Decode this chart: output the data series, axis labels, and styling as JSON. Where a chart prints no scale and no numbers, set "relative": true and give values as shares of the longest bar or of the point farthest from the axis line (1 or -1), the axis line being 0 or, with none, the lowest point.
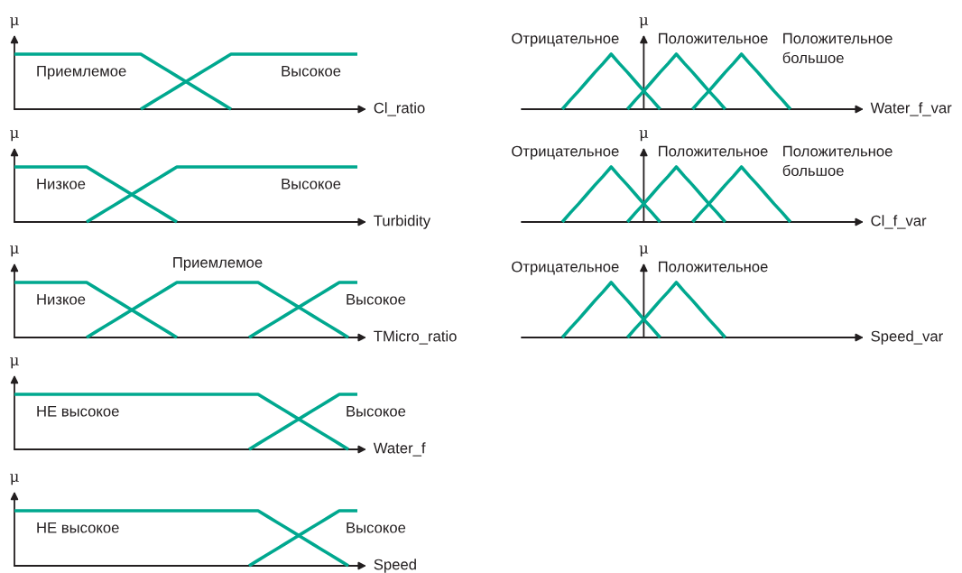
{
  "chart_data": [
    {
      "type": "line",
      "relative": true,
      "ylabel": "μ",
      "xlabel": "Cl_ratio",
      "marker": "none",
      "line_style": "solid",
      "categories": [
        null,
        null,
        null,
        null,
        null,
        null,
        null,
        null,
        null,
        null,
        null,
        null,
        null,
        null,
        null,
        null,
        null,
        null,
        null,
        null,
        null,
        null,
        null,
        null,
        null,
        null,
        null,
        null,
        null,
        null,
        null,
        null,
        null,
        null,
        null,
        null,
        null,
        null,
        null,
        null
      ],
      "series": [
        {
          "name": "Приемлемое",
          "color": "#00a88f",
          "values": [
            1,
            1,
            1,
            1,
            1,
            1,
            1,
            1,
            1,
            1,
            1,
            1,
            1,
            1,
            1,
            0.9,
            0.8,
            0.7,
            0.6,
            0.5,
            0.4,
            0.3,
            0.2,
            0.1,
            0,
            null,
            null,
            null,
            null,
            null,
            null,
            null,
            null,
            null,
            null,
            null,
            null,
            null,
            null,
            null
          ]
        },
        {
          "name": "Высокое",
          "color": "#00a88f",
          "values": [
            null,
            null,
            null,
            null,
            null,
            null,
            null,
            null,
            null,
            null,
            null,
            null,
            null,
            null,
            0,
            0.1,
            0.2,
            0.3,
            0.4,
            0.5,
            0.6,
            0.7,
            0.8,
            0.9,
            1,
            1,
            1,
            1,
            1,
            1,
            1,
            1,
            1,
            1,
            1,
            1,
            1,
            1,
            1,
            null
          ]
        }
      ]
    },
    {
      "type": "line",
      "relative": true,
      "ylabel": "μ",
      "xlabel": "Turbidity",
      "marker": "none",
      "line_style": "solid",
      "categories": [
        null,
        null,
        null,
        null,
        null,
        null,
        null,
        null,
        null,
        null,
        null,
        null,
        null,
        null,
        null,
        null,
        null,
        null,
        null,
        null,
        null,
        null,
        null,
        null,
        null,
        null,
        null,
        null,
        null,
        null,
        null,
        null,
        null,
        null,
        null,
        null,
        null,
        null,
        null,
        null
      ],
      "series": [
        {
          "name": "Низкое",
          "color": "#00a88f",
          "values": [
            1,
            1,
            1,
            1,
            1,
            1,
            1,
            1,
            1,
            0.9,
            0.8,
            0.7,
            0.6,
            0.5,
            0.4,
            0.3,
            0.2,
            0.1,
            0,
            null,
            null,
            null,
            null,
            null,
            null,
            null,
            null,
            null,
            null,
            null,
            null,
            null,
            null,
            null,
            null,
            null,
            null,
            null,
            null,
            null
          ]
        },
        {
          "name": "Высокое",
          "color": "#00a88f",
          "values": [
            null,
            null,
            null,
            null,
            null,
            null,
            null,
            null,
            0,
            0.1,
            0.2,
            0.3,
            0.4,
            0.5,
            0.6,
            0.7,
            0.8,
            0.9,
            1,
            1,
            1,
            1,
            1,
            1,
            1,
            1,
            1,
            1,
            1,
            1,
            1,
            1,
            1,
            1,
            1,
            1,
            1,
            1,
            1,
            null
          ]
        }
      ]
    },
    {
      "type": "line",
      "relative": true,
      "ylabel": "μ",
      "xlabel": "TMicro_ratio",
      "marker": "none",
      "line_style": "solid",
      "categories": [
        null,
        null,
        null,
        null,
        null,
        null,
        null,
        null,
        null,
        null,
        null,
        null,
        null,
        null,
        null,
        null,
        null,
        null,
        null,
        null,
        null,
        null,
        null,
        null,
        null,
        null,
        null,
        null,
        null,
        null,
        null,
        null,
        null,
        null,
        null,
        null,
        null,
        null,
        null,
        null
      ],
      "series": [
        {
          "name": "Низкое",
          "color": "#00a88f",
          "values": [
            1,
            1,
            1,
            1,
            1,
            1,
            1,
            1,
            1,
            0.9,
            0.8,
            0.7,
            0.6,
            0.5,
            0.4,
            0.3,
            0.2,
            0.1,
            0,
            null,
            null,
            null,
            null,
            null,
            null,
            null,
            null,
            null,
            null,
            null,
            null,
            null,
            null,
            null,
            null,
            null,
            null,
            null,
            null,
            null
          ]
        },
        {
          "name": "Приемлемое",
          "color": "#00a88f",
          "values": [
            null,
            null,
            null,
            null,
            null,
            null,
            null,
            null,
            0,
            0.1,
            0.2,
            0.3,
            0.4,
            0.5,
            0.6,
            0.7,
            0.8,
            0.9,
            1,
            1,
            1,
            1,
            1,
            1,
            1,
            1,
            1,
            1,
            0.9,
            0.8,
            0.7,
            0.6,
            0.5,
            0.4,
            0.3,
            0.2,
            0.1,
            0,
            null,
            null
          ]
        },
        {
          "name": "Высокое",
          "color": "#00a88f",
          "values": [
            null,
            null,
            null,
            null,
            null,
            null,
            null,
            null,
            null,
            null,
            null,
            null,
            null,
            null,
            null,
            null,
            null,
            null,
            null,
            null,
            null,
            null,
            null,
            null,
            null,
            null,
            0,
            0.1,
            0.2,
            0.3,
            0.4,
            0.5,
            0.6,
            0.7,
            0.8,
            0.9,
            1,
            1,
            1,
            null
          ]
        }
      ]
    },
    {
      "type": "line",
      "relative": true,
      "ylabel": "μ",
      "xlabel": "Water_f",
      "marker": "none",
      "line_style": "solid",
      "categories": [
        null,
        null,
        null,
        null,
        null,
        null,
        null,
        null,
        null,
        null,
        null,
        null,
        null,
        null,
        null,
        null,
        null,
        null,
        null,
        null,
        null,
        null,
        null,
        null,
        null,
        null,
        null,
        null,
        null,
        null,
        null,
        null,
        null,
        null,
        null,
        null,
        null,
        null,
        null,
        null
      ],
      "series": [
        {
          "name": "НЕ высокое",
          "color": "#00a88f",
          "values": [
            1,
            1,
            1,
            1,
            1,
            1,
            1,
            1,
            1,
            1,
            1,
            1,
            1,
            1,
            1,
            1,
            1,
            1,
            1,
            1,
            1,
            1,
            1,
            1,
            1,
            1,
            1,
            1,
            0.9,
            0.8,
            0.7,
            0.6,
            0.5,
            0.4,
            0.3,
            0.2,
            0.1,
            0,
            null,
            null
          ]
        },
        {
          "name": "Высокое",
          "color": "#00a88f",
          "values": [
            null,
            null,
            null,
            null,
            null,
            null,
            null,
            null,
            null,
            null,
            null,
            null,
            null,
            null,
            null,
            null,
            null,
            null,
            null,
            null,
            null,
            null,
            null,
            null,
            null,
            null,
            0,
            0.1,
            0.2,
            0.3,
            0.4,
            0.5,
            0.6,
            0.7,
            0.8,
            0.9,
            1,
            1,
            1,
            null
          ]
        }
      ]
    },
    {
      "type": "line",
      "relative": true,
      "ylabel": "μ",
      "xlabel": "Speed",
      "marker": "none",
      "line_style": "solid",
      "categories": [
        null,
        null,
        null,
        null,
        null,
        null,
        null,
        null,
        null,
        null,
        null,
        null,
        null,
        null,
        null,
        null,
        null,
        null,
        null,
        null,
        null,
        null,
        null,
        null,
        null,
        null,
        null,
        null,
        null,
        null,
        null,
        null,
        null,
        null,
        null,
        null,
        null,
        null,
        null,
        null
      ],
      "series": [
        {
          "name": "НЕ высокое",
          "color": "#00a88f",
          "values": [
            1,
            1,
            1,
            1,
            1,
            1,
            1,
            1,
            1,
            1,
            1,
            1,
            1,
            1,
            1,
            1,
            1,
            1,
            1,
            1,
            1,
            1,
            1,
            1,
            1,
            1,
            1,
            1,
            0.9,
            0.8,
            0.7,
            0.6,
            0.5,
            0.4,
            0.3,
            0.2,
            0.1,
            0,
            null,
            null
          ]
        },
        {
          "name": "Высокое",
          "color": "#00a88f",
          "values": [
            null,
            null,
            null,
            null,
            null,
            null,
            null,
            null,
            null,
            null,
            null,
            null,
            null,
            null,
            null,
            null,
            null,
            null,
            null,
            null,
            null,
            null,
            null,
            null,
            null,
            null,
            0,
            0.1,
            0.2,
            0.3,
            0.4,
            0.5,
            0.6,
            0.7,
            0.8,
            0.9,
            1,
            1,
            1,
            null
          ]
        }
      ]
    },
    {
      "type": "line",
      "relative": true,
      "ylabel": "μ",
      "xlabel": "Water_f_var",
      "marker": "none",
      "line_style": "solid",
      "categories": [
        null,
        null,
        null,
        null,
        null,
        null,
        null,
        null,
        null,
        null,
        null,
        null,
        null,
        null,
        null,
        null,
        null,
        null,
        null,
        null,
        null,
        null,
        null,
        null,
        null,
        null,
        null,
        null,
        null,
        null,
        null,
        null,
        null,
        null,
        null,
        null,
        null,
        null,
        null,
        null,
        null,
        null,
        null
      ],
      "series": [
        {
          "name": "Отрицательное",
          "color": "#00a88f",
          "values": [
            null,
            null,
            null,
            null,
            null,
            0,
            0.17,
            0.33,
            0.5,
            0.67,
            0.83,
            1,
            0.83,
            0.67,
            0.5,
            0.33,
            0.17,
            0,
            null,
            null,
            null,
            null,
            null,
            null,
            null,
            null,
            null,
            null,
            null,
            null,
            null,
            null,
            null,
            null,
            null,
            null,
            null,
            null,
            null,
            null,
            null,
            null,
            null
          ]
        },
        {
          "name": "Положительное",
          "color": "#00a88f",
          "values": [
            null,
            null,
            null,
            null,
            null,
            null,
            null,
            null,
            null,
            null,
            null,
            null,
            null,
            0,
            0.17,
            0.33,
            0.5,
            0.67,
            0.83,
            1,
            0.83,
            0.67,
            0.5,
            0.33,
            0.17,
            0,
            null,
            null,
            null,
            null,
            null,
            null,
            null,
            null,
            null,
            null,
            null,
            null,
            null,
            null,
            null,
            null,
            null
          ]
        },
        {
          "name": "Положительное большое",
          "color": "#00a88f",
          "values": [
            null,
            null,
            null,
            null,
            null,
            null,
            null,
            null,
            null,
            null,
            null,
            null,
            null,
            null,
            null,
            null,
            null,
            null,
            null,
            null,
            null,
            0,
            0.17,
            0.33,
            0.5,
            0.67,
            0.83,
            1,
            0.83,
            0.67,
            0.5,
            0.33,
            0.17,
            0,
            null,
            null,
            null,
            null,
            null,
            null,
            null,
            null,
            null
          ]
        }
      ]
    },
    {
      "type": "line",
      "relative": true,
      "ylabel": "μ",
      "xlabel": "Cl_f_var",
      "marker": "none",
      "line_style": "solid",
      "categories": [
        null,
        null,
        null,
        null,
        null,
        null,
        null,
        null,
        null,
        null,
        null,
        null,
        null,
        null,
        null,
        null,
        null,
        null,
        null,
        null,
        null,
        null,
        null,
        null,
        null,
        null,
        null,
        null,
        null,
        null,
        null,
        null,
        null,
        null,
        null,
        null,
        null,
        null,
        null,
        null,
        null,
        null,
        null
      ],
      "series": [
        {
          "name": "Отрицательное",
          "color": "#00a88f",
          "values": [
            null,
            null,
            null,
            null,
            null,
            0,
            0.17,
            0.33,
            0.5,
            0.67,
            0.83,
            1,
            0.83,
            0.67,
            0.5,
            0.33,
            0.17,
            0,
            null,
            null,
            null,
            null,
            null,
            null,
            null,
            null,
            null,
            null,
            null,
            null,
            null,
            null,
            null,
            null,
            null,
            null,
            null,
            null,
            null,
            null,
            null,
            null,
            null
          ]
        },
        {
          "name": "Положительное",
          "color": "#00a88f",
          "values": [
            null,
            null,
            null,
            null,
            null,
            null,
            null,
            null,
            null,
            null,
            null,
            null,
            null,
            0,
            0.17,
            0.33,
            0.5,
            0.67,
            0.83,
            1,
            0.83,
            0.67,
            0.5,
            0.33,
            0.17,
            0,
            null,
            null,
            null,
            null,
            null,
            null,
            null,
            null,
            null,
            null,
            null,
            null,
            null,
            null,
            null,
            null,
            null
          ]
        },
        {
          "name": "Положительное большое",
          "color": "#00a88f",
          "values": [
            null,
            null,
            null,
            null,
            null,
            null,
            null,
            null,
            null,
            null,
            null,
            null,
            null,
            null,
            null,
            null,
            null,
            null,
            null,
            null,
            null,
            0,
            0.17,
            0.33,
            0.5,
            0.67,
            0.83,
            1,
            0.83,
            0.67,
            0.5,
            0.33,
            0.17,
            0,
            null,
            null,
            null,
            null,
            null,
            null,
            null,
            null,
            null
          ]
        }
      ]
    },
    {
      "type": "line",
      "relative": true,
      "ylabel": "μ",
      "xlabel": "Speed_var",
      "marker": "none",
      "line_style": "solid",
      "categories": [
        null,
        null,
        null,
        null,
        null,
        null,
        null,
        null,
        null,
        null,
        null,
        null,
        null,
        null,
        null,
        null,
        null,
        null,
        null,
        null,
        null,
        null,
        null,
        null,
        null,
        null,
        null,
        null,
        null,
        null,
        null,
        null,
        null,
        null,
        null,
        null,
        null,
        null,
        null,
        null,
        null,
        null,
        null
      ],
      "series": [
        {
          "name": "Отрицательное",
          "color": "#00a88f",
          "values": [
            null,
            null,
            null,
            null,
            null,
            0,
            0.17,
            0.33,
            0.5,
            0.67,
            0.83,
            1,
            0.83,
            0.67,
            0.5,
            0.33,
            0.17,
            0,
            null,
            null,
            null,
            null,
            null,
            null,
            null,
            null,
            null,
            null,
            null,
            null,
            null,
            null,
            null,
            null,
            null,
            null,
            null,
            null,
            null,
            null,
            null,
            null,
            null
          ]
        },
        {
          "name": "Положительное",
          "color": "#00a88f",
          "values": [
            null,
            null,
            null,
            null,
            null,
            null,
            null,
            null,
            null,
            null,
            null,
            null,
            null,
            0,
            0.17,
            0.33,
            0.5,
            0.67,
            0.83,
            1,
            0.83,
            0.67,
            0.5,
            0.33,
            0.17,
            0,
            null,
            null,
            null,
            null,
            null,
            null,
            null,
            null,
            null,
            null,
            null,
            null,
            null,
            null,
            null,
            null,
            null
          ]
        }
      ]
    }
  ]
}
